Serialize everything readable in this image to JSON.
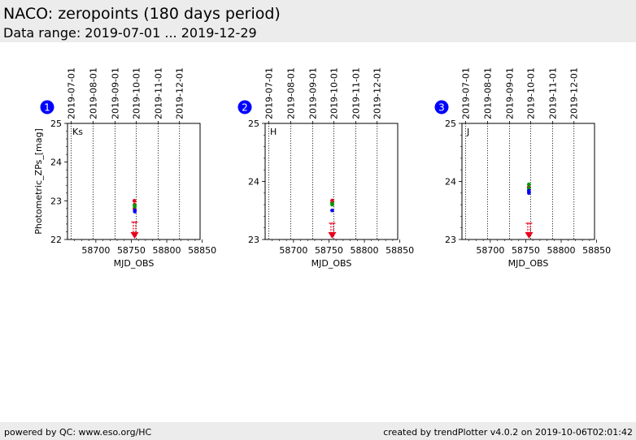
{
  "header": {
    "title": "NACO: zeropoints (180 days period)",
    "subtitle": "Data range: 2019-07-01 ... 2019-12-29"
  },
  "footer": {
    "left": "powered by QC: www.eso.org/HC",
    "right": "created by trendPlotter v4.0.2 on 2019-10-06T02:01:42"
  },
  "colors": {
    "badge": "#0000ff",
    "red": "#e8001c",
    "green": "#009900",
    "blue": "#0000ff",
    "grid": "#000000"
  },
  "chart_data": [
    {
      "type": "scatter",
      "index": "1",
      "filter_label": "Ks",
      "xlabel": "MJD_OBS",
      "ylabel": "Photometric_ZPs_[mag]",
      "xlim": [
        58660,
        58847
      ],
      "ylim": [
        22,
        25
      ],
      "xticks": [
        58700,
        58750,
        58800,
        58850
      ],
      "yticks": [
        22,
        23,
        24,
        25
      ],
      "date_ticks": [
        {
          "mjd": 58665,
          "label": "2019-07-01"
        },
        {
          "mjd": 58696,
          "label": "2019-08-01"
        },
        {
          "mjd": 58727,
          "label": "2019-09-01"
        },
        {
          "mjd": 58757,
          "label": "2019-10-01"
        },
        {
          "mjd": 58788,
          "label": "2019-11-01"
        },
        {
          "mjd": 58818,
          "label": "2019-12-01"
        }
      ],
      "series": [
        {
          "name": "red",
          "color": "#e8001c",
          "points": [
            [
              58754.3,
              23.0
            ],
            [
              58754.6,
              22.9
            ],
            [
              58754.5,
              22.8
            ]
          ]
        },
        {
          "name": "green",
          "color": "#009900",
          "points": [
            [
              58754.7,
              22.88
            ],
            [
              58754.8,
              22.85
            ]
          ]
        },
        {
          "name": "blue",
          "color": "#0000ff",
          "points": [
            [
              58754.9,
              22.75
            ],
            [
              58755.0,
              22.72
            ]
          ]
        }
      ],
      "lower_limits": [
        {
          "x": 58754.6,
          "y": 22.45,
          "color": "#e8001c"
        }
      ]
    },
    {
      "type": "scatter",
      "index": "2",
      "filter_label": "H",
      "xlabel": "MJD_OBS",
      "ylabel": "",
      "xlim": [
        58660,
        58847
      ],
      "ylim": [
        23,
        25
      ],
      "xticks": [
        58700,
        58750,
        58800,
        58850
      ],
      "yticks": [
        23,
        24,
        25
      ],
      "date_ticks": [
        {
          "mjd": 58665,
          "label": "2019-07-01"
        },
        {
          "mjd": 58696,
          "label": "2019-08-01"
        },
        {
          "mjd": 58727,
          "label": "2019-09-01"
        },
        {
          "mjd": 58757,
          "label": "2019-10-01"
        },
        {
          "mjd": 58788,
          "label": "2019-11-01"
        },
        {
          "mjd": 58818,
          "label": "2019-12-01"
        }
      ],
      "series": [
        {
          "name": "red",
          "color": "#e8001c",
          "points": [
            [
              58754.5,
              23.67
            ],
            [
              58754.4,
              23.63
            ]
          ]
        },
        {
          "name": "green",
          "color": "#009900",
          "points": [
            [
              58754.6,
              23.62
            ],
            [
              58754.6,
              23.6
            ]
          ]
        },
        {
          "name": "blue",
          "color": "#0000ff",
          "points": [
            [
              58754.5,
              23.5
            ]
          ]
        }
      ],
      "lower_limits": [
        {
          "x": 58754.6,
          "y": 23.28,
          "color": "#e8001c"
        }
      ]
    },
    {
      "type": "scatter",
      "index": "3",
      "filter_label": "J",
      "xlabel": "MJD_OBS",
      "ylabel": "",
      "xlim": [
        58660,
        58847
      ],
      "ylim": [
        23,
        25
      ],
      "xticks": [
        58700,
        58750,
        58800,
        58850
      ],
      "yticks": [
        23,
        24,
        25
      ],
      "date_ticks": [
        {
          "mjd": 58665,
          "label": "2019-07-01"
        },
        {
          "mjd": 58696,
          "label": "2019-08-01"
        },
        {
          "mjd": 58727,
          "label": "2019-09-01"
        },
        {
          "mjd": 58757,
          "label": "2019-10-01"
        },
        {
          "mjd": 58788,
          "label": "2019-11-01"
        },
        {
          "mjd": 58818,
          "label": "2019-12-01"
        }
      ],
      "series": [
        {
          "name": "red",
          "color": "#e8001c",
          "points": [
            [
              58754.2,
              23.9
            ]
          ]
        },
        {
          "name": "green",
          "color": "#009900",
          "points": [
            [
              58754.4,
              23.95
            ],
            [
              58754.3,
              23.88
            ]
          ]
        },
        {
          "name": "blue",
          "color": "#0000ff",
          "points": [
            [
              58754.3,
              23.84
            ],
            [
              58754.4,
              23.8
            ]
          ]
        }
      ],
      "lower_limits": [
        {
          "x": 58754.6,
          "y": 23.28,
          "color": "#e8001c"
        }
      ]
    }
  ]
}
